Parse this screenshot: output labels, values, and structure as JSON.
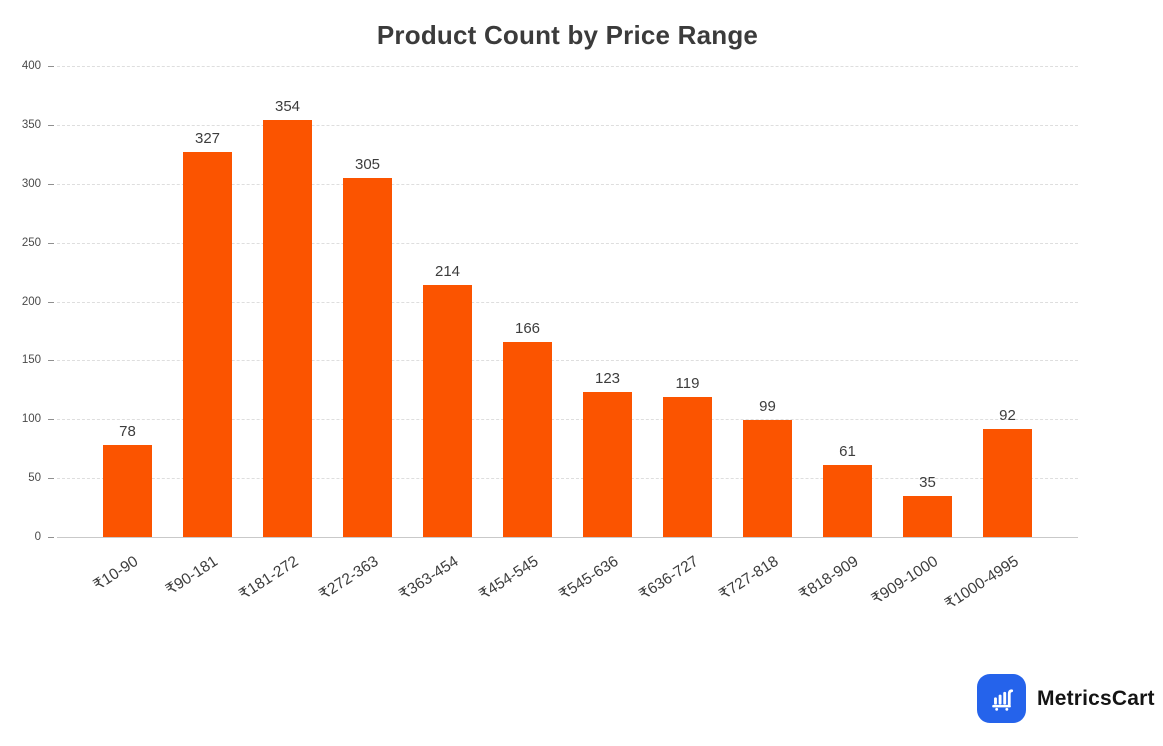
{
  "chart_data": {
    "type": "bar",
    "title": "Product Count by Price Range",
    "categories": [
      "₹10-90",
      "₹90-181",
      "₹181-272",
      "₹272-363",
      "₹363-454",
      "₹454-545",
      "₹545-636",
      "₹636-727",
      "₹727-818",
      "₹818-909",
      "₹909-1000",
      "₹1000-4995"
    ],
    "values": [
      78,
      327,
      354,
      305,
      214,
      166,
      123,
      119,
      99,
      61,
      35,
      92
    ],
    "xlabel": "",
    "ylabel": "",
    "ylim": [
      0,
      400
    ],
    "yticks": [
      0,
      50,
      100,
      150,
      200,
      250,
      300,
      350,
      400
    ],
    "grid": "horizontal-dashed",
    "legend": "none",
    "value_labels": true,
    "bar_color": "#FB5400"
  },
  "branding": {
    "logo_text": "MetricsCart",
    "logo_icon": "cart-bar-chart-icon",
    "logo_bg_color": "#2563EB"
  }
}
